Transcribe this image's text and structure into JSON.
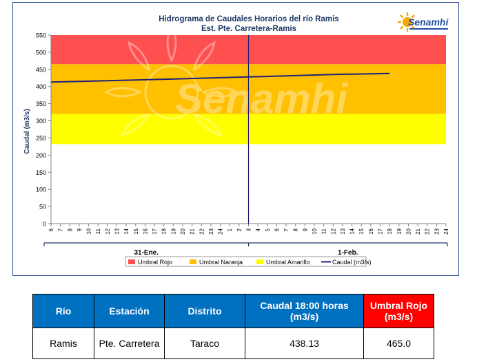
{
  "chart_data": {
    "type": "line",
    "title": "Hidrograma de Caudales Horarios del río Ramis",
    "subtitle": "Est. Pte. Carretera-Ramis",
    "ylabel": "Caudal  (m3/s)",
    "ylim": [
      0,
      550
    ],
    "yticks": [
      "0",
      "50",
      "100",
      "150",
      "200",
      "250",
      "300",
      "350",
      "400",
      "450",
      "500",
      "550"
    ],
    "xticks": [
      "6",
      "7",
      "8",
      "9",
      "10",
      "11",
      "12",
      "13",
      "14",
      "15",
      "16",
      "17",
      "18",
      "19",
      "20",
      "21",
      "22",
      "23",
      "24",
      "1",
      "2",
      "3",
      "4",
      "5",
      "6",
      "7",
      "8",
      "9",
      "10",
      "11",
      "12",
      "13",
      "14",
      "15",
      "16",
      "17",
      "18",
      "19",
      "20",
      "21",
      "22",
      "23",
      "24"
    ],
    "day_labels": [
      "31-Ene.",
      "1-Feb."
    ],
    "thresholds": [
      {
        "name": "Umbral Rojo",
        "from": 465,
        "to": 550,
        "color": "#ff5050"
      },
      {
        "name": "Umbral Naranja",
        "from": 320,
        "to": 465,
        "color": "#ffc000"
      },
      {
        "name": "Umbral Amarillo",
        "from": 232,
        "to": 320,
        "color": "#ffff00"
      }
    ],
    "marker_x_index": 21,
    "series": [
      {
        "name": "Caudal (m3/s)",
        "color": "#1f1f7a",
        "x_index": [
          0,
          9,
          21,
          30,
          36
        ],
        "values": [
          413,
          419,
          428,
          435,
          438.13
        ]
      }
    ],
    "legend": [
      {
        "label": "Umbral Rojo",
        "color": "#ff5050",
        "kind": "box"
      },
      {
        "label": "Umbral Naranja",
        "color": "#ffc000",
        "kind": "box"
      },
      {
        "label": "Umbral Amarillo",
        "color": "#ffff00",
        "kind": "box"
      },
      {
        "label": "Caudal (m3/s)",
        "color": "#1f1f7a",
        "kind": "line"
      }
    ],
    "legend_position": "bottom",
    "grid": false
  },
  "logo": {
    "text": "Senamhi",
    "watermark": "Senamhi"
  },
  "table": {
    "headers": [
      "Río",
      "Estación",
      "Distrito",
      "Caudal 18:00 horas (m3/s)",
      "Umbral Rojo (m3/s)"
    ],
    "row": [
      "Ramis",
      "Pte. Carretera",
      "Taraco",
      "438.13",
      "465.0"
    ]
  }
}
